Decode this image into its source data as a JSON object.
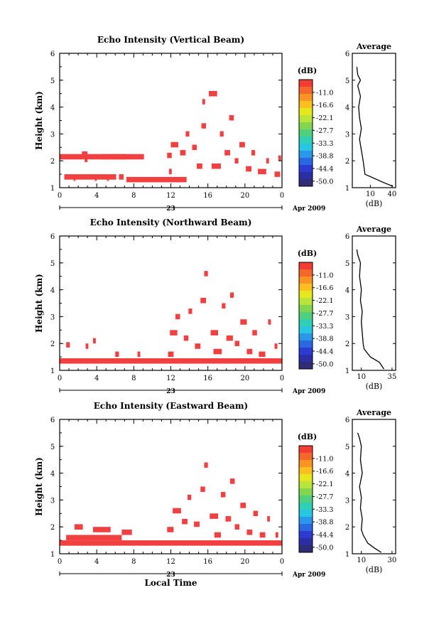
{
  "chart_data": [
    {
      "type": "heatmap",
      "title": "Echo Intensity (Vertical Beam)",
      "ylabel": "Height (km)",
      "ylim": [
        1,
        6
      ],
      "yticks": [
        "1",
        "2",
        "3",
        "4",
        "5",
        "6"
      ],
      "xlim": [
        0,
        24
      ],
      "xticks": [
        "0",
        "4",
        "8",
        "12",
        "16",
        "20",
        "0"
      ],
      "date_day": "23",
      "date_month_year": "Apr 2009",
      "colorbar": {
        "label": "(dB)",
        "ticks": [
          "-11.0",
          "-16.6",
          "-22.1",
          "-27.7",
          "-33.3",
          "-38.8",
          "-44.4",
          "-50.0"
        ]
      },
      "cells_hour_height": [
        [
          0,
          2.15,
          9.1
        ],
        [
          2.4,
          2.25,
          0.6
        ],
        [
          2.7,
          2.05,
          0.3
        ],
        [
          4.6,
          2.15,
          0.8
        ],
        [
          5.6,
          2.15,
          1.6
        ],
        [
          0.5,
          1.4,
          5.6
        ],
        [
          6.4,
          1.4,
          0.5
        ],
        [
          7.2,
          1.3,
          6.5
        ],
        [
          1.5,
          1.35,
          0.2
        ],
        [
          3.8,
          1.35,
          0.2
        ],
        [
          5.1,
          1.35,
          0.2
        ],
        [
          11.8,
          1.6,
          0.3
        ],
        [
          11.6,
          2.2,
          0.5
        ],
        [
          12.0,
          2.6,
          0.8
        ],
        [
          13.0,
          2.3,
          0.6
        ],
        [
          13.6,
          3.0,
          0.4
        ],
        [
          14.3,
          2.5,
          0.5
        ],
        [
          14.8,
          1.8,
          0.6
        ],
        [
          15.3,
          3.3,
          0.5
        ],
        [
          15.4,
          4.2,
          0.3
        ],
        [
          16.1,
          4.5,
          0.9
        ],
        [
          16.4,
          1.8,
          1.0
        ],
        [
          17.3,
          3.0,
          0.4
        ],
        [
          17.8,
          2.3,
          0.6
        ],
        [
          18.3,
          3.6,
          0.5
        ],
        [
          18.9,
          2.0,
          0.4
        ],
        [
          19.4,
          2.6,
          0.6
        ],
        [
          20.1,
          1.7,
          0.6
        ],
        [
          20.7,
          2.3,
          0.4
        ],
        [
          21.4,
          1.6,
          0.9
        ],
        [
          22.3,
          2.0,
          0.3
        ],
        [
          23.2,
          1.5,
          0.6
        ],
        [
          23.6,
          2.1,
          0.3
        ]
      ],
      "average": {
        "title": "Average",
        "xlabel": "(dB)",
        "xticks": [
          "10",
          "40"
        ],
        "ylim": [
          1,
          6
        ],
        "profile": [
          [
            1.05,
            45
          ],
          [
            1.2,
            34
          ],
          [
            1.5,
            14
          ],
          [
            2.0,
            12
          ],
          [
            2.4,
            10
          ],
          [
            2.8,
            8
          ],
          [
            3.2,
            10
          ],
          [
            3.6,
            8
          ],
          [
            4.0,
            7
          ],
          [
            4.4,
            9
          ],
          [
            4.8,
            6
          ],
          [
            5.0,
            9
          ],
          [
            5.2,
            6
          ],
          [
            5.5,
            5
          ]
        ]
      }
    },
    {
      "type": "heatmap",
      "title": "Echo Intensity (Northward Beam)",
      "ylabel": "Height (km)",
      "ylim": [
        1,
        6
      ],
      "yticks": [
        "1",
        "2",
        "3",
        "4",
        "5",
        "6"
      ],
      "xlim": [
        0,
        24
      ],
      "xticks": [
        "0",
        "4",
        "8",
        "12",
        "16",
        "20",
        "0"
      ],
      "date_day": "23",
      "date_month_year": "Apr 2009",
      "colorbar": {
        "label": "(dB)",
        "ticks": [
          "-11.0",
          "-16.6",
          "-22.1",
          "-27.7",
          "-33.3",
          "-38.8",
          "-44.4",
          "-50.0"
        ]
      },
      "cells_hour_height": [
        [
          0,
          1.35,
          24.0
        ],
        [
          0.7,
          1.95,
          0.4
        ],
        [
          2.8,
          1.9,
          0.3
        ],
        [
          3.6,
          2.1,
          0.3
        ],
        [
          6.0,
          1.6,
          0.4
        ],
        [
          8.4,
          1.6,
          0.3
        ],
        [
          11.7,
          1.6,
          0.6
        ],
        [
          11.9,
          2.4,
          0.8
        ],
        [
          12.5,
          3.0,
          0.5
        ],
        [
          13.4,
          2.2,
          0.5
        ],
        [
          13.9,
          3.2,
          0.4
        ],
        [
          14.6,
          1.9,
          0.6
        ],
        [
          15.2,
          3.6,
          0.6
        ],
        [
          15.6,
          4.6,
          0.4
        ],
        [
          16.3,
          2.4,
          0.8
        ],
        [
          16.6,
          1.7,
          0.9
        ],
        [
          17.5,
          3.4,
          0.4
        ],
        [
          18.0,
          2.2,
          0.7
        ],
        [
          18.4,
          3.8,
          0.4
        ],
        [
          18.9,
          2.0,
          0.5
        ],
        [
          19.5,
          2.8,
          0.7
        ],
        [
          20.2,
          1.7,
          0.6
        ],
        [
          20.8,
          2.4,
          0.5
        ],
        [
          21.5,
          1.6,
          0.7
        ],
        [
          22.5,
          2.8,
          0.3
        ],
        [
          23.2,
          1.9,
          0.3
        ]
      ],
      "average": {
        "title": "Average",
        "xlabel": "(dB)",
        "xticks": [
          "10",
          "35"
        ],
        "ylim": [
          1,
          6
        ],
        "profile": [
          [
            1.05,
            35
          ],
          [
            1.3,
            30
          ],
          [
            1.5,
            20
          ],
          [
            1.8,
            13
          ],
          [
            2.0,
            12
          ],
          [
            2.4,
            11
          ],
          [
            2.8,
            10
          ],
          [
            3.2,
            11
          ],
          [
            3.6,
            9
          ],
          [
            4.0,
            10
          ],
          [
            4.5,
            8
          ],
          [
            5.0,
            9
          ],
          [
            5.3,
            6
          ],
          [
            5.5,
            5
          ]
        ]
      }
    },
    {
      "type": "heatmap",
      "title": "Echo Intensity (Eastward Beam)",
      "xlabel": "Local Time",
      "ylabel": "Height (km)",
      "ylim": [
        1,
        6
      ],
      "yticks": [
        "1",
        "2",
        "3",
        "4",
        "5",
        "6"
      ],
      "xlim": [
        0,
        24
      ],
      "xticks": [
        "0",
        "4",
        "8",
        "12",
        "16",
        "20",
        "0"
      ],
      "date_day": "23",
      "date_month_year": "Apr 2009",
      "colorbar": {
        "label": "(dB)",
        "ticks": [
          "-11.0",
          "-16.6",
          "-22.1",
          "-27.7",
          "-33.3",
          "-38.8",
          "-44.4",
          "-50.0"
        ]
      },
      "cells_hour_height": [
        [
          0,
          1.4,
          24.0
        ],
        [
          0.7,
          1.6,
          6.0
        ],
        [
          1.6,
          2.0,
          0.9
        ],
        [
          3.6,
          1.9,
          1.9
        ],
        [
          6.7,
          1.8,
          1.1
        ],
        [
          11.6,
          1.9,
          0.7
        ],
        [
          12.2,
          2.6,
          0.9
        ],
        [
          13.2,
          2.2,
          0.6
        ],
        [
          13.8,
          3.1,
          0.4
        ],
        [
          14.5,
          2.1,
          0.6
        ],
        [
          15.2,
          3.4,
          0.5
        ],
        [
          15.6,
          4.3,
          0.4
        ],
        [
          16.2,
          2.4,
          0.9
        ],
        [
          16.7,
          1.7,
          0.7
        ],
        [
          17.4,
          3.2,
          0.5
        ],
        [
          17.9,
          2.3,
          0.6
        ],
        [
          18.4,
          3.7,
          0.5
        ],
        [
          18.9,
          2.0,
          0.5
        ],
        [
          19.5,
          2.8,
          0.6
        ],
        [
          20.2,
          1.8,
          0.6
        ],
        [
          20.9,
          2.5,
          0.5
        ],
        [
          21.6,
          1.7,
          0.6
        ],
        [
          22.4,
          2.3,
          0.3
        ],
        [
          23.3,
          1.7,
          0.3
        ]
      ],
      "average": {
        "title": "Average",
        "xlabel": "(dB)",
        "xticks": [
          "10",
          "30"
        ],
        "ylim": [
          1,
          6
        ],
        "profile": [
          [
            1.05,
            32
          ],
          [
            1.2,
            25
          ],
          [
            1.4,
            17
          ],
          [
            1.7,
            12
          ],
          [
            1.9,
            10
          ],
          [
            2.3,
            11
          ],
          [
            2.7,
            9
          ],
          [
            3.1,
            10
          ],
          [
            3.5,
            8
          ],
          [
            4.0,
            11
          ],
          [
            4.5,
            9
          ],
          [
            5.0,
            10
          ],
          [
            5.3,
            8
          ],
          [
            5.5,
            6
          ]
        ]
      }
    }
  ],
  "colors": {
    "echo": "#f24040",
    "scale": [
      "#f23c34",
      "#f5672a",
      "#f99322",
      "#fbc01f",
      "#e7e71e",
      "#b9e53a",
      "#82d64f",
      "#4fd07c",
      "#2fd0b3",
      "#27c7e4",
      "#2a98ea",
      "#2c67e2",
      "#2c3cd2",
      "#2d2ea6",
      "#2e2d75"
    ]
  }
}
